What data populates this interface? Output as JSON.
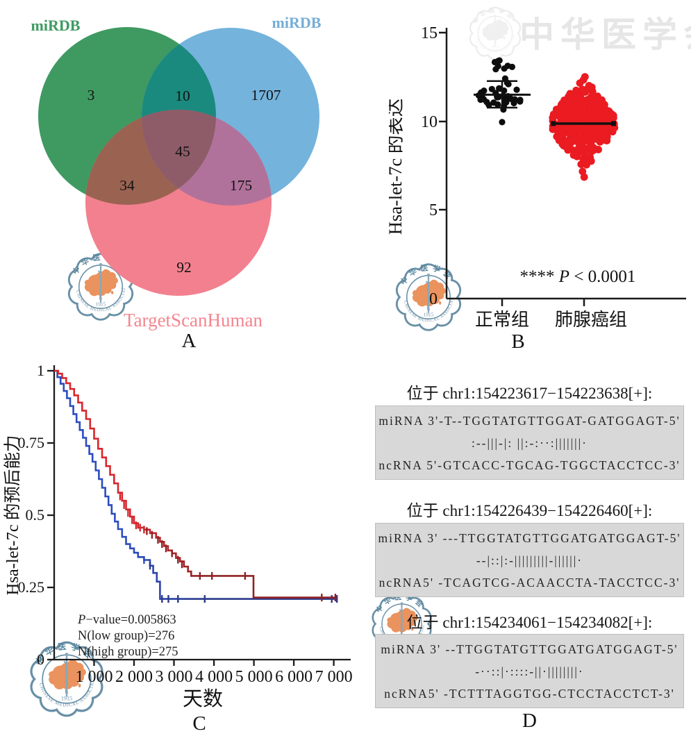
{
  "watermark": {
    "chars": "中华医学会",
    "logo": {
      "top_text": "中华医学会",
      "bottom_text": "CHINESE MEDICAL ASSOCIATION",
      "year": "1915"
    }
  },
  "panel_labels": {
    "a": "A",
    "b": "B",
    "c": "C",
    "d": "D"
  },
  "chart_data": [
    {
      "type": "venn",
      "sets": [
        {
          "label": "miRDB",
          "color": "#3f9a62"
        },
        {
          "label": "miRDB",
          "color": "#74b3dc"
        },
        {
          "label": "TargetScanHuman",
          "color": "#f2808f"
        }
      ],
      "label_colors": {
        "set1": "#3f9a62",
        "set2": "#74aed8",
        "set3": "#f4858f"
      },
      "overlap_colors": {
        "set1_set2": "#1b8a7e",
        "set1_set3": "#9a6351",
        "set2_set3": "#b0729b",
        "center": "#8e5c68"
      },
      "regions": {
        "set1_only": "3",
        "set1_set2": "10",
        "set2_only": "1707",
        "center": "45",
        "set1_set3": "34",
        "set2_set3": "175",
        "set3_only": "92"
      }
    },
    {
      "type": "scatter",
      "variant": "beeswarm",
      "ylabel": "Hsa-let-7c 的表达",
      "ylim": [
        0,
        15
      ],
      "yticks": [
        "15",
        "10",
        "5",
        "0"
      ],
      "groups": [
        {
          "label": "正常组",
          "color": "#0d0d0d",
          "dot_radius": 4.6,
          "clusters": [
            {
              "n": 34,
              "mean": 11.5,
              "sd": 0.38,
              "spread": 41
            },
            {
              "n": 8,
              "mean": 13.2,
              "sd": 0.25,
              "spread": 16
            },
            {
              "n": 1,
              "mean": 9.95,
              "sd": 0,
              "spread": 0
            }
          ],
          "mean_value": 11.5,
          "error_top": 12.27,
          "error_bottom": 10.77,
          "style": "whisker"
        },
        {
          "label": "肺腺癌组",
          "color": "#ea1b21",
          "dot_radius": 5.4,
          "clusters": [
            {
              "n": 380,
              "mean": 9.9,
              "sd": 1.05,
              "spread": 46
            }
          ],
          "mean_value": 9.87,
          "error_top": 9.97,
          "error_bottom": 9.77,
          "style": "squares"
        }
      ],
      "annotation": {
        "stars": "**** ",
        "p": "P",
        "rest": " < 0.0001"
      }
    },
    {
      "type": "line",
      "variant": "kaplan-meier",
      "xlabel": "天数",
      "ylabel": "Hsa-let-7c 的预后能力",
      "xlim": [
        0,
        7200
      ],
      "ylim": [
        0,
        1
      ],
      "xticks": [
        {
          "v": 1000,
          "label": "1 000"
        },
        {
          "v": 2000,
          "label": "2 000"
        },
        {
          "v": 3000,
          "label": "3 000"
        },
        {
          "v": 4000,
          "label": "4 000"
        },
        {
          "v": 5000,
          "label": "5 000"
        },
        {
          "v": 6000,
          "label": "6 000"
        },
        {
          "v": 7000,
          "label": "7 000"
        }
      ],
      "yticks": [
        {
          "v": 1,
          "label": "1"
        },
        {
          "v": 0.75,
          "label": "0.75"
        },
        {
          "v": 0.5,
          "label": "0.5"
        },
        {
          "v": 0.25,
          "label": "0.25"
        },
        {
          "v": 0,
          "label": "0"
        }
      ],
      "stats": {
        "p": "P",
        "p_rest": "−value=0.005863",
        "n_low": "N(low group)=276",
        "n_high": "N(high group)=275"
      },
      "series": [
        {
          "name": "high group",
          "color_start": "#d8262d",
          "color_end": "#8e2124",
          "points": [
            [
              0,
              1.0
            ],
            [
              100,
              0.99
            ],
            [
              200,
              0.975
            ],
            [
              300,
              0.957
            ],
            [
              400,
              0.937
            ],
            [
              500,
              0.915
            ],
            [
              600,
              0.89
            ],
            [
              700,
              0.862
            ],
            [
              800,
              0.833
            ],
            [
              900,
              0.8
            ],
            [
              1000,
              0.765
            ],
            [
              1100,
              0.73
            ],
            [
              1200,
              0.7
            ],
            [
              1300,
              0.67
            ],
            [
              1400,
              0.64
            ],
            [
              1500,
              0.61
            ],
            [
              1600,
              0.578
            ],
            [
              1700,
              0.55
            ],
            [
              1800,
              0.52
            ],
            [
              1900,
              0.495
            ],
            [
              2000,
              0.472
            ],
            [
              2100,
              0.457
            ],
            [
              2250,
              0.45
            ],
            [
              2400,
              0.438
            ],
            [
              2550,
              0.422
            ],
            [
              2650,
              0.408
            ],
            [
              2750,
              0.393
            ],
            [
              2850,
              0.378
            ],
            [
              2950,
              0.368
            ],
            [
              3050,
              0.352
            ],
            [
              3150,
              0.34
            ],
            [
              3250,
              0.322
            ],
            [
              3350,
              0.305
            ],
            [
              3430,
              0.29
            ],
            [
              4950,
              0.29
            ],
            [
              4990,
              0.215
            ],
            [
              7080,
              0.215
            ]
          ],
          "censors": [
            [
              1650,
              0.565
            ],
            [
              1750,
              0.535
            ],
            [
              1850,
              0.508
            ],
            [
              1950,
              0.483
            ],
            [
              2050,
              0.465
            ],
            [
              2150,
              0.457
            ],
            [
              2250,
              0.45
            ],
            [
              2320,
              0.445
            ],
            [
              2450,
              0.432
            ],
            [
              2600,
              0.415
            ],
            [
              2700,
              0.4
            ],
            [
              2800,
              0.385
            ],
            [
              2950,
              0.368
            ],
            [
              3100,
              0.346
            ],
            [
              3200,
              0.33
            ],
            [
              3650,
              0.29
            ],
            [
              3950,
              0.29
            ],
            [
              4780,
              0.29
            ],
            [
              6700,
              0.215
            ],
            [
              7040,
              0.215
            ]
          ]
        },
        {
          "name": "low group",
          "color_start": "#2b4cc0",
          "color_end": "#2b3a8c",
          "points": [
            [
              0,
              1.0
            ],
            [
              80,
              0.978
            ],
            [
              160,
              0.955
            ],
            [
              240,
              0.93
            ],
            [
              320,
              0.905
            ],
            [
              400,
              0.878
            ],
            [
              480,
              0.85
            ],
            [
              560,
              0.822
            ],
            [
              640,
              0.795
            ],
            [
              720,
              0.768
            ],
            [
              800,
              0.74
            ],
            [
              880,
              0.712
            ],
            [
              960,
              0.685
            ],
            [
              1040,
              0.655
            ],
            [
              1120,
              0.625
            ],
            [
              1200,
              0.595
            ],
            [
              1280,
              0.565
            ],
            [
              1360,
              0.535
            ],
            [
              1440,
              0.505
            ],
            [
              1520,
              0.478
            ],
            [
              1600,
              0.452
            ],
            [
              1700,
              0.425
            ],
            [
              1800,
              0.4
            ],
            [
              1900,
              0.385
            ],
            [
              2000,
              0.37
            ],
            [
              2100,
              0.355
            ],
            [
              2250,
              0.345
            ],
            [
              2400,
              0.325
            ],
            [
              2480,
              0.3
            ],
            [
              2570,
              0.27
            ],
            [
              2650,
              0.21
            ],
            [
              7080,
              0.21
            ]
          ],
          "censors": [
            [
              2250,
              0.345
            ],
            [
              2400,
              0.325
            ],
            [
              2700,
              0.21
            ],
            [
              2860,
              0.21
            ],
            [
              3100,
              0.21
            ],
            [
              3770,
              0.21
            ],
            [
              6950,
              0.21
            ],
            [
              7080,
              0.21
            ]
          ]
        }
      ]
    }
  ],
  "alignments": {
    "blocks": [
      {
        "title": "位于 chr1:154223617−154223638[+]:",
        "mirna": "miRNA 3'-T--TGGTATGTTGGAT-GATGGAGT-5'",
        "match": ":--|||-|: ||:-:··:|||||||·",
        "ncrna": "ncRNA 5'-GTCACC-TGCAG-TGGCTACCTCC-3'"
      },
      {
        "title": "位于 chr1:154226439−154226460[+]:",
        "mirna": "miRNA 3' ---TTGGTATGTTGGATGATGGAGT-5'",
        "match": "--|::|:-|||||||||-||||||·",
        "ncrna": "ncRNA5' -TCAGTCG-ACAACCTA-TACCTCC-3'"
      },
      {
        "title": "位于 chr1:154234061−154234082[+]:",
        "mirna": "miRNA 3' --TTGGTATGTTGGATGATGGAGT-5'",
        "match": "-··::|·::::-||·||||||||·",
        "ncrna": "ncRNA5' -TCTTTAGGTGG-CTCCTACCTCT-3'"
      }
    ]
  }
}
